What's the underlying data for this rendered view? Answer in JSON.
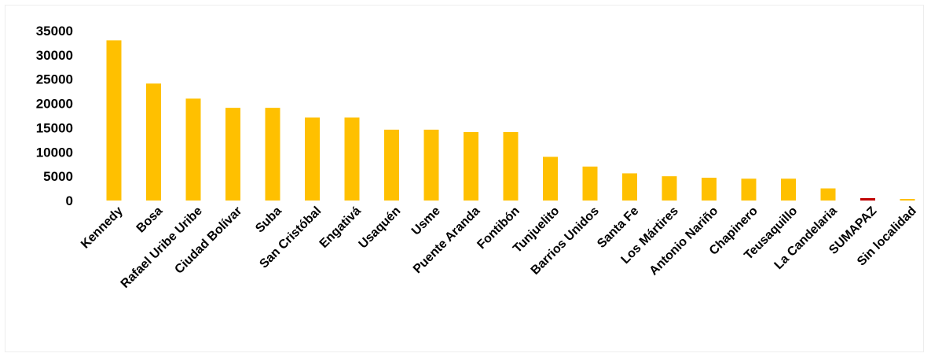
{
  "chart_data": {
    "type": "bar",
    "categories": [
      "Kennedy",
      "Bosa",
      "Rafael Uribe Uribe",
      "Ciudad Bolívar",
      "Suba",
      "San Cristóbal",
      "Engativá",
      "Usaquén",
      "Usme",
      "Puente Aranda",
      "Fontibón",
      "Tunjuelito",
      "Barrios Unidos",
      "Santa Fe",
      "Los Mártires",
      "Antonio Nariño",
      "Chapinero",
      "Teusaquillo",
      "La Candelaria",
      "SUMAPAZ",
      "Sin localidad"
    ],
    "values": [
      33000,
      24100,
      21000,
      19100,
      19100,
      17100,
      17100,
      14600,
      14600,
      14100,
      14100,
      9000,
      7000,
      5600,
      5000,
      4700,
      4500,
      4500,
      2500,
      500,
      200
    ],
    "bar_colors": [
      "#FFC000",
      "#FFC000",
      "#FFC000",
      "#FFC000",
      "#FFC000",
      "#FFC000",
      "#FFC000",
      "#FFC000",
      "#FFC000",
      "#FFC000",
      "#FFC000",
      "#FFC000",
      "#FFC000",
      "#FFC000",
      "#FFC000",
      "#FFC000",
      "#FFC000",
      "#FFC000",
      "#FFC000",
      "#C00000",
      "#FFC000"
    ],
    "yticks": [
      "0",
      "5000",
      "10000",
      "15000",
      "20000",
      "25000",
      "30000",
      "35000"
    ],
    "ylim": [
      0,
      35000
    ],
    "title": "",
    "xlabel": "",
    "ylabel": "",
    "grid": false,
    "legend": "none"
  }
}
